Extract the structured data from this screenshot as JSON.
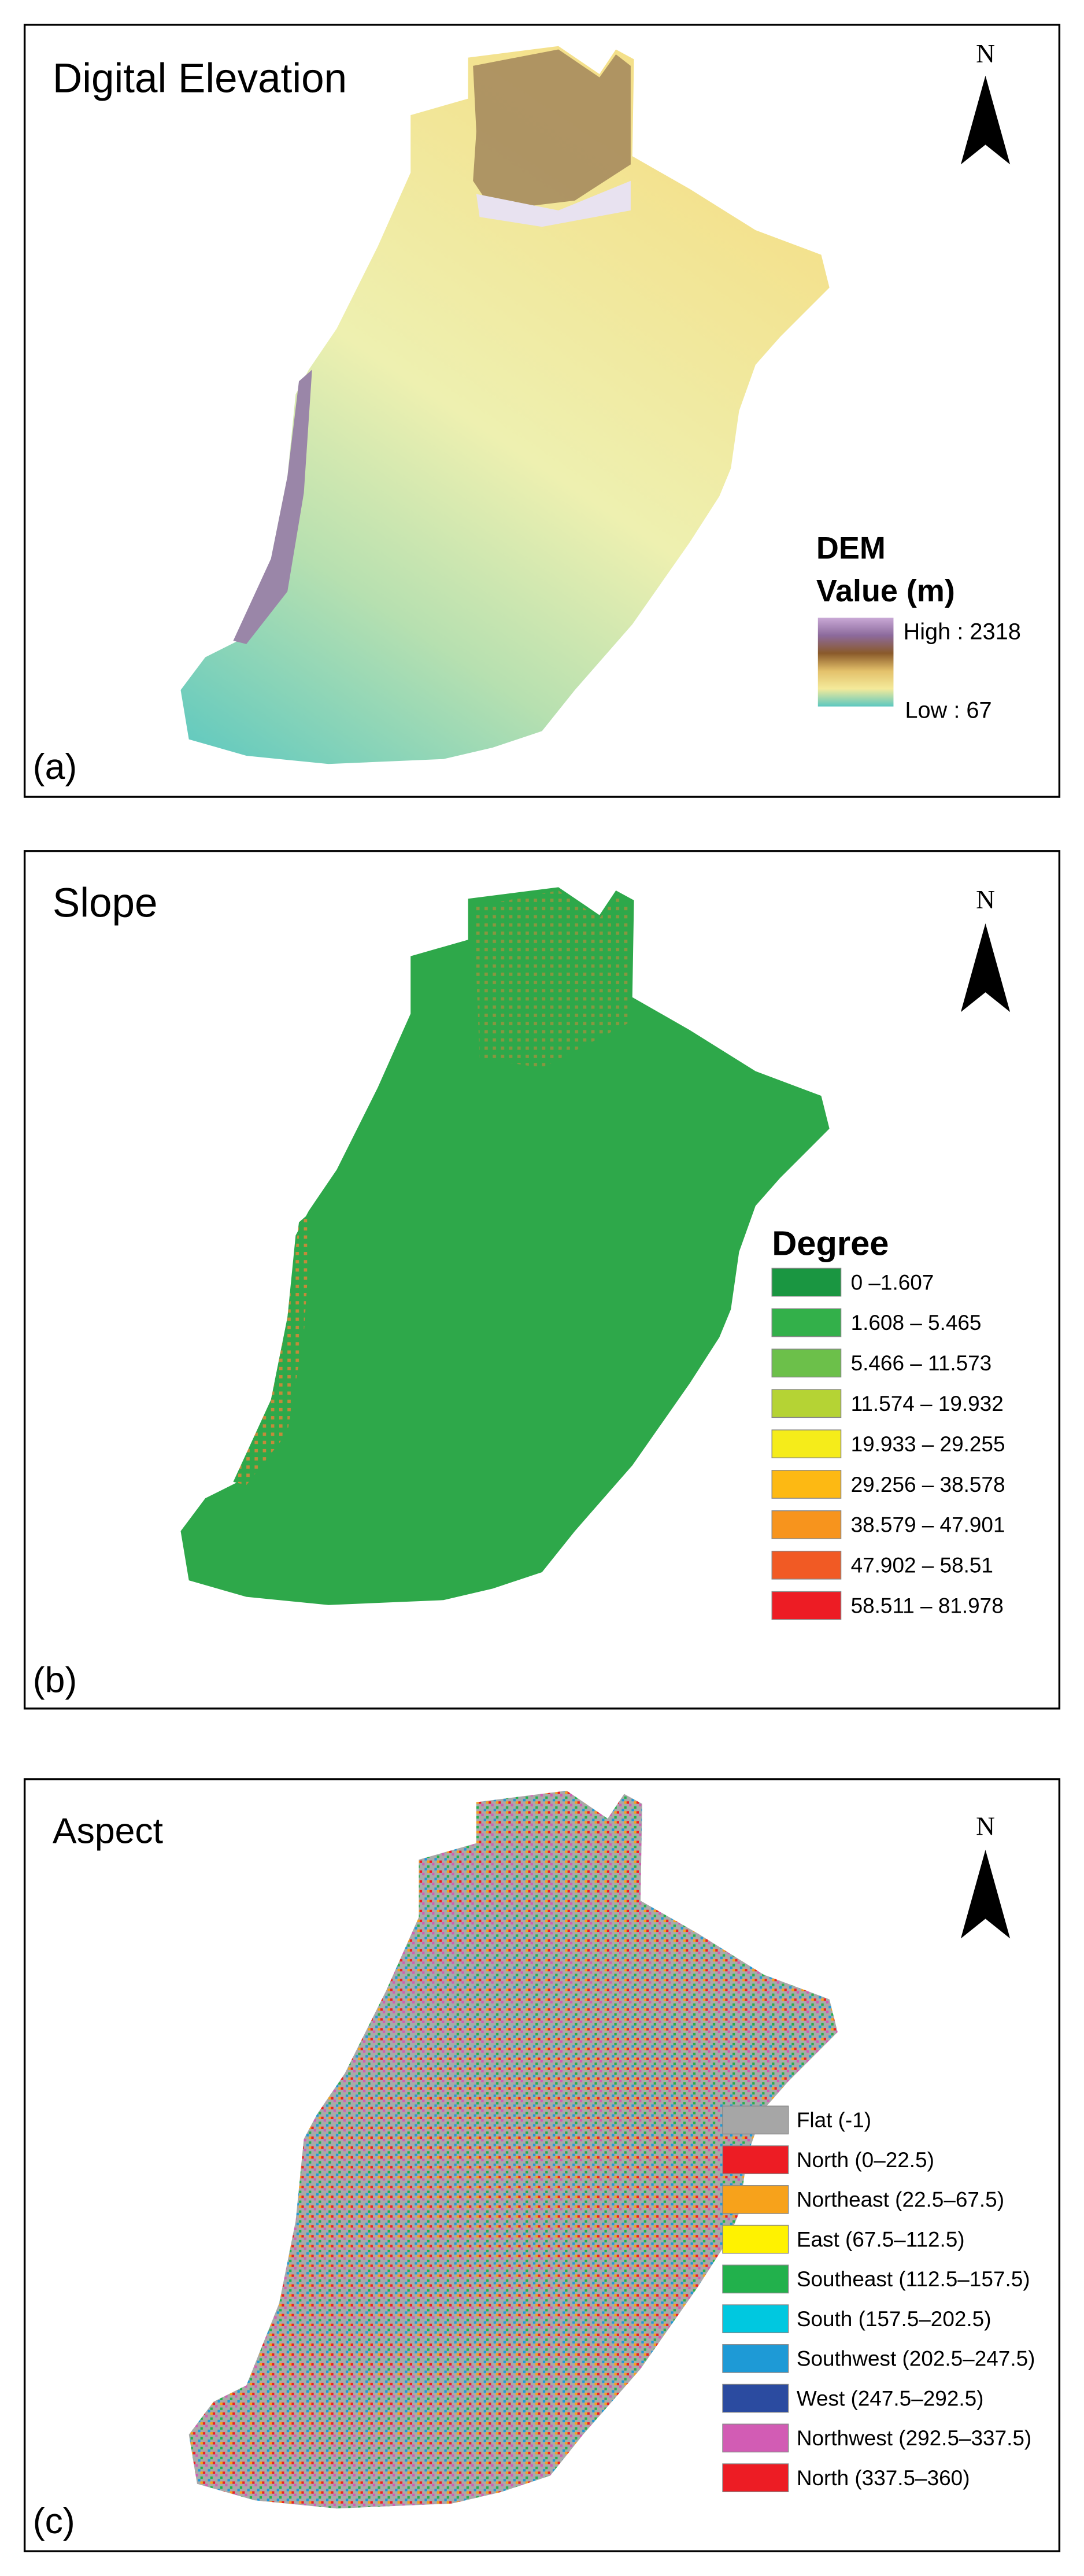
{
  "panels": [
    {
      "title": "Digital Elevation",
      "label": "(a)",
      "north": "N",
      "legend": {
        "title": [
          "DEM",
          "Value (m)"
        ],
        "high": "High : 2318",
        "low": "Low : 67"
      }
    },
    {
      "title": "Slope",
      "label": "(b)",
      "north": "N",
      "legend": {
        "title": "Degree",
        "items": [
          {
            "label": "0 –1.607",
            "color": "#1a9641"
          },
          {
            "label": "1.608 – 5.465",
            "color": "#33b04a"
          },
          {
            "label": "5.466 – 11.573",
            "color": "#6cc04a"
          },
          {
            "label": "11.574 – 19.932",
            "color": "#b5d334"
          },
          {
            "label": "19.933 – 29.255",
            "color": "#f5ec1a"
          },
          {
            "label": "29.256 – 38.578",
            "color": "#fdb913"
          },
          {
            "label": "38.579 – 47.901",
            "color": "#f7941d"
          },
          {
            "label": "47.902 – 58.51",
            "color": "#f15a24"
          },
          {
            "label": "58.511 – 81.978",
            "color": "#ed1c24"
          }
        ]
      }
    },
    {
      "title": "Aspect",
      "label": "(c)",
      "north": "N",
      "legend": {
        "items": [
          {
            "label": "Flat (-1)",
            "color": "#a6a6a6"
          },
          {
            "label": "North (0–22.5)",
            "color": "#ed1c24"
          },
          {
            "label": "Northeast (22.5–67.5)",
            "color": "#f7a21b"
          },
          {
            "label": "East (67.5–112.5)",
            "color": "#fff200"
          },
          {
            "label": "Southeast (112.5–157.5)",
            "color": "#22b14c"
          },
          {
            "label": "South (157.5–202.5)",
            "color": "#00c8e0"
          },
          {
            "label": "Southwest (202.5–247.5)",
            "color": "#1e9ad6"
          },
          {
            "label": "West (247.5–292.5)",
            "color": "#2b4ba0"
          },
          {
            "label": "Northwest (292.5–337.5)",
            "color": "#d25cb4"
          },
          {
            "label": "North (337.5–360)",
            "color": "#ed1c24"
          }
        ]
      }
    }
  ]
}
